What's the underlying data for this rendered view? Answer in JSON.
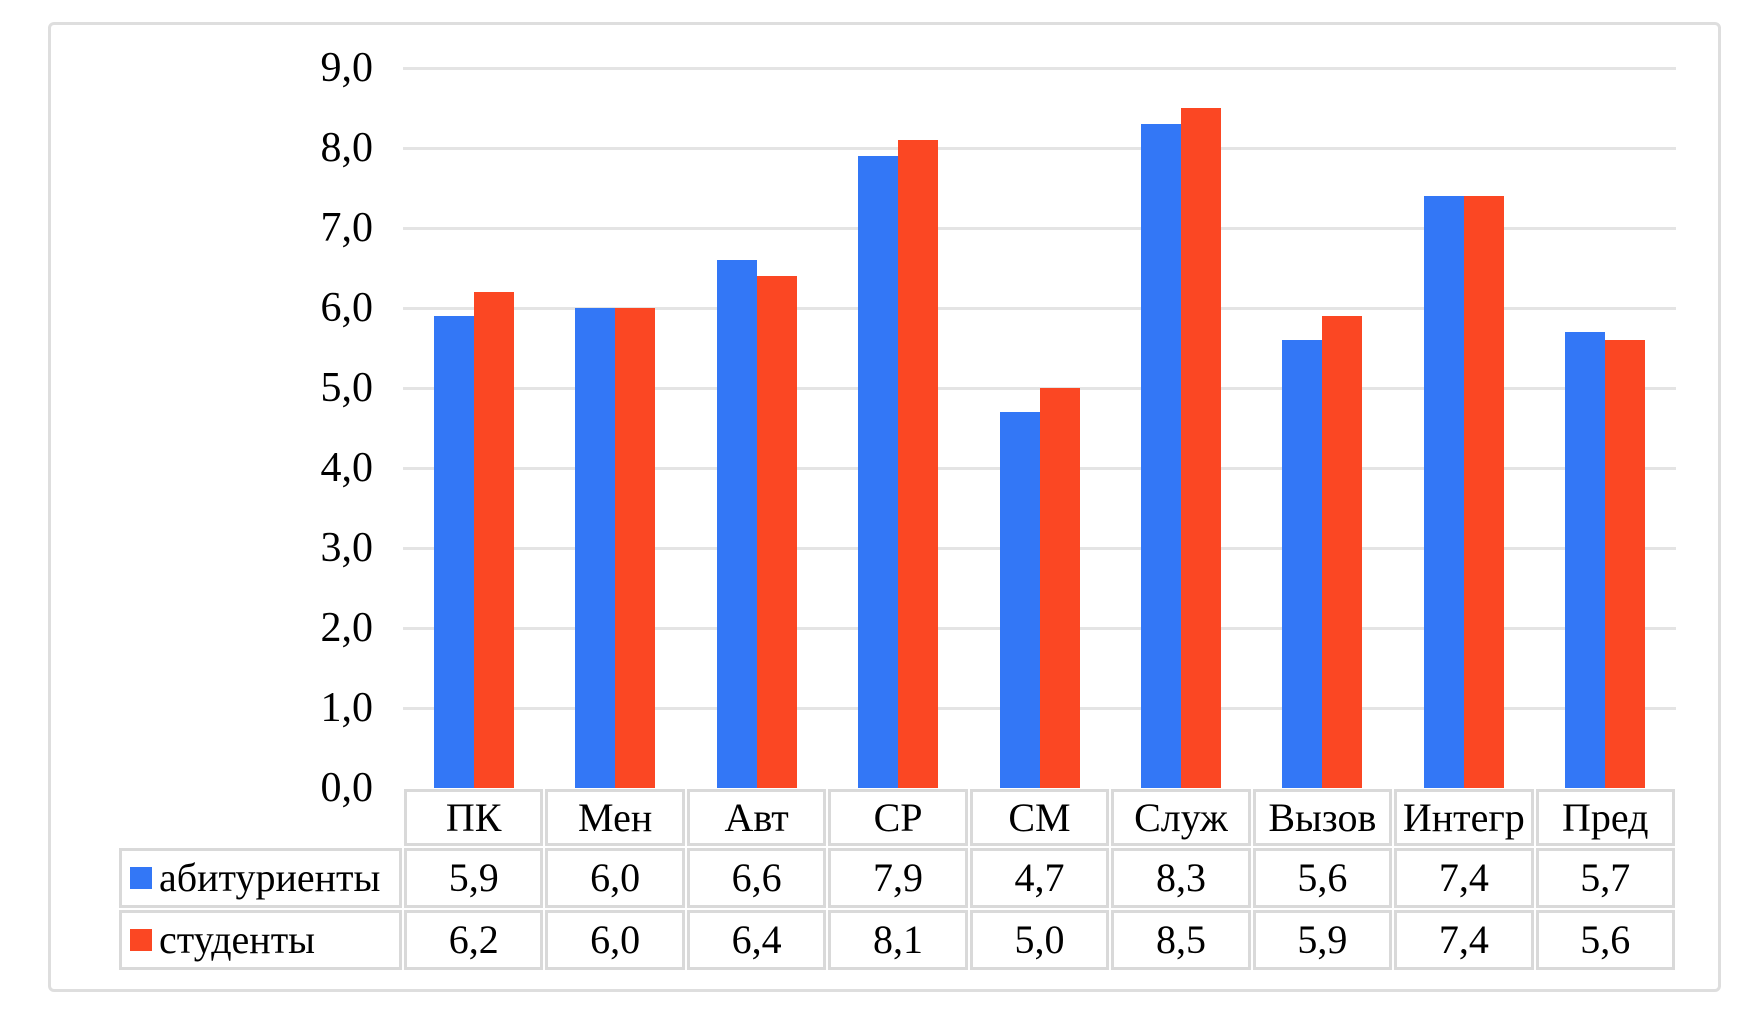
{
  "chart_data": {
    "type": "bar",
    "title": "",
    "xlabel": "",
    "ylabel": "",
    "categories": [
      "ПК",
      "Мен",
      "Авт",
      "СР",
      "СМ",
      "Служ",
      "Вызов",
      "Интегр",
      "Пред"
    ],
    "series": [
      {
        "name": "абитуриенты",
        "color": "#3377F6",
        "values": [
          5.9,
          6.0,
          6.6,
          7.9,
          4.7,
          8.3,
          5.6,
          7.4,
          5.7
        ],
        "display_values": [
          "5,9",
          "6,0",
          "6,6",
          "7,9",
          "4,7",
          "8,3",
          "5,6",
          "7,4",
          "5,7"
        ]
      },
      {
        "name": "студенты",
        "color": "#FB4723",
        "values": [
          6.2,
          6.0,
          6.4,
          8.1,
          5.0,
          8.5,
          5.9,
          7.4,
          5.6
        ],
        "display_values": [
          "6,2",
          "6,0",
          "6,4",
          "8,1",
          "5,0",
          "8,5",
          "5,9",
          "7,4",
          "5,6"
        ]
      }
    ],
    "ylim": [
      0,
      9
    ],
    "y_tick_step": 1.0,
    "y_tick_labels": [
      "0,0",
      "1,0",
      "2,0",
      "3,0",
      "4,0",
      "5,0",
      "6,0",
      "7,0",
      "8,0",
      "9,0"
    ],
    "decimal_separator": ",",
    "grid": true,
    "legend_position": "data-table-left",
    "data_table_shown": true
  },
  "colors": {
    "series_abiturienty": "#3377F6",
    "series_studenty": "#FB4723",
    "gridline": "#E4E4E4",
    "table_border": "#D9D9D9",
    "frame_border": "#DEDEDE",
    "text": "#000000",
    "background": "#FFFFFF"
  }
}
